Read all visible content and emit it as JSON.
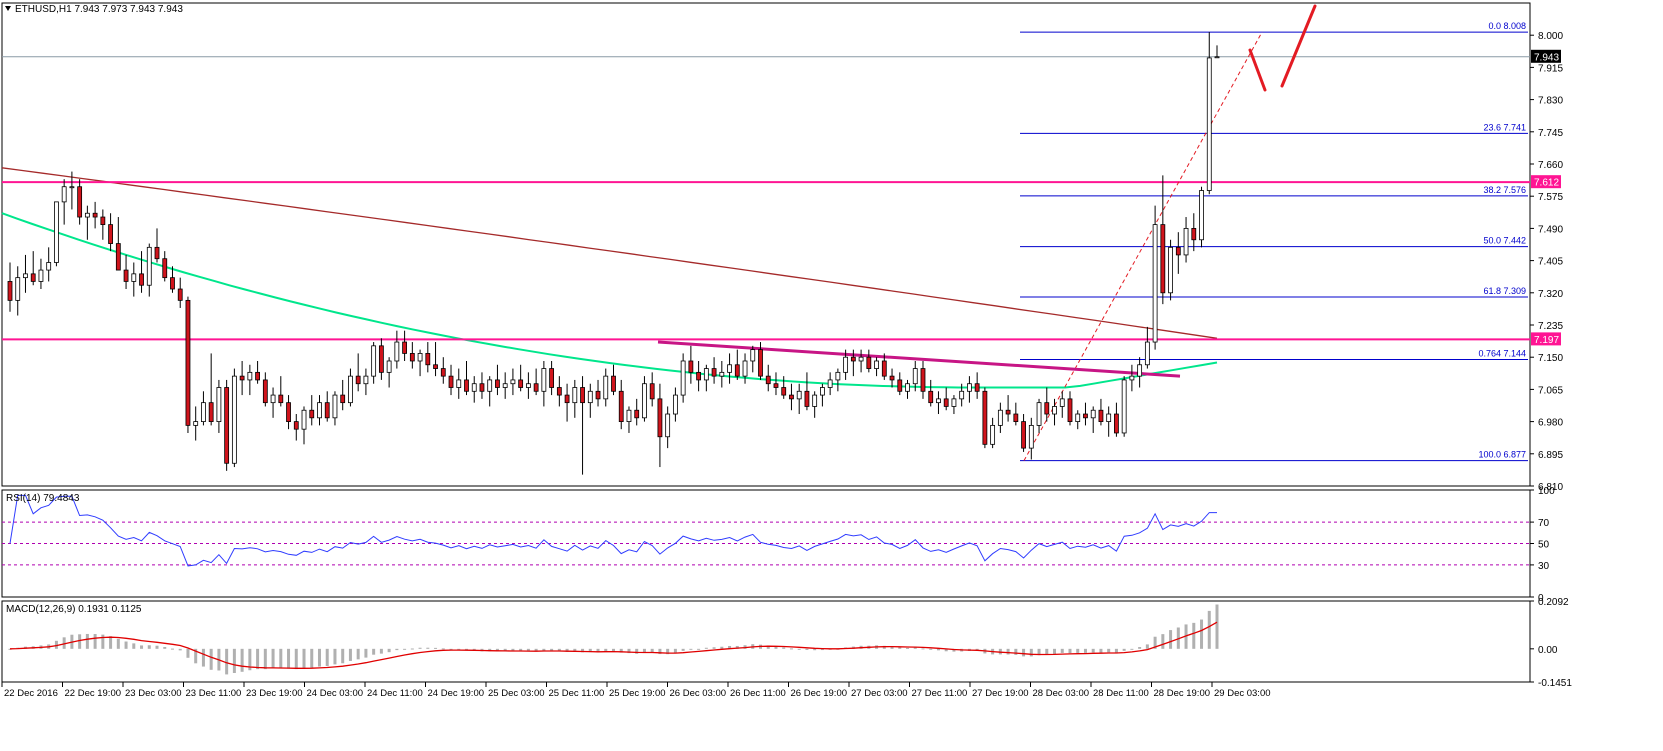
{
  "chart_data": [
    {
      "type": "candlestick",
      "symbol_label": "ETHUSD,H1",
      "ohlc_label": "7.943 7.973 7.943 7.943",
      "current_price": "7.943",
      "ylim": [
        6.81,
        8.085
      ],
      "y_ticks": [
        "8.000",
        "7.915",
        "7.830",
        "7.745",
        "7.660",
        "7.575",
        "7.490",
        "7.405",
        "7.320",
        "7.235",
        "7.150",
        "7.065",
        "6.980",
        "6.895",
        "6.810"
      ],
      "x_tick_labels": [
        "22 Dec 2016",
        "22 Dec 19:00",
        "23 Dec 03:00",
        "23 Dec 11:00",
        "23 Dec 19:00",
        "24 Dec 03:00",
        "24 Dec 11:00",
        "24 Dec 19:00",
        "25 Dec 03:00",
        "25 Dec 11:00",
        "25 Dec 19:00",
        "26 Dec 03:00",
        "26 Dec 11:00",
        "26 Dec 19:00",
        "27 Dec 03:00",
        "27 Dec 11:00",
        "27 Dec 19:00",
        "28 Dec 03:00",
        "28 Dec 11:00",
        "28 Dec 19:00",
        "29 Dec 03:00"
      ],
      "horizontal_levels": [
        {
          "value": 7.612,
          "label": "7.612",
          "color": "#ff1493"
        },
        {
          "value": 7.197,
          "label": "7.197",
          "color": "#ff1493"
        }
      ],
      "fibonacci": {
        "color": "#0000cd",
        "levels": [
          {
            "ratio": "0.0",
            "value": "8.008"
          },
          {
            "ratio": "23.6",
            "value": "7.741"
          },
          {
            "ratio": "38.2",
            "value": "7.576"
          },
          {
            "ratio": "50.0",
            "value": "7.442"
          },
          {
            "ratio": "61.8",
            "value": "7.309"
          },
          {
            "ratio": "0.764",
            "value": "7.144"
          },
          {
            "ratio": "100.0",
            "value": "6.877"
          }
        ]
      },
      "trend_line": {
        "color": "#c71585",
        "from": 7.19,
        "to": 7.1
      },
      "moving_averages": [
        {
          "color": "#a52a2a",
          "from": 7.65,
          "to": 7.2
        },
        {
          "color": "#00e68c",
          "from": 7.53,
          "to": 7.1
        }
      ],
      "candles": [
        [
          7.35,
          7.4,
          7.27,
          7.3
        ],
        [
          7.3,
          7.39,
          7.26,
          7.36
        ],
        [
          7.36,
          7.42,
          7.32,
          7.37
        ],
        [
          7.37,
          7.43,
          7.34,
          7.35
        ],
        [
          7.35,
          7.41,
          7.33,
          7.38
        ],
        [
          7.38,
          7.44,
          7.35,
          7.4
        ],
        [
          7.4,
          7.56,
          7.39,
          7.56
        ],
        [
          7.56,
          7.62,
          7.5,
          7.6
        ],
        [
          7.6,
          7.64,
          7.54,
          7.6
        ],
        [
          7.6,
          7.62,
          7.5,
          7.52
        ],
        [
          7.52,
          7.55,
          7.46,
          7.53
        ],
        [
          7.53,
          7.56,
          7.49,
          7.52
        ],
        [
          7.52,
          7.54,
          7.46,
          7.5
        ],
        [
          7.5,
          7.53,
          7.43,
          7.45
        ],
        [
          7.45,
          7.52,
          7.38,
          7.38
        ],
        [
          7.38,
          7.42,
          7.33,
          7.35
        ],
        [
          7.35,
          7.4,
          7.31,
          7.37
        ],
        [
          7.37,
          7.43,
          7.32,
          7.34
        ],
        [
          7.34,
          7.45,
          7.31,
          7.44
        ],
        [
          7.44,
          7.49,
          7.4,
          7.41
        ],
        [
          7.41,
          7.43,
          7.35,
          7.36
        ],
        [
          7.36,
          7.39,
          7.32,
          7.33
        ],
        [
          7.33,
          7.36,
          7.28,
          7.3
        ],
        [
          7.3,
          7.31,
          6.95,
          6.97
        ],
        [
          6.97,
          7.02,
          6.93,
          6.98
        ],
        [
          6.98,
          7.06,
          6.97,
          7.03
        ],
        [
          7.03,
          7.16,
          6.97,
          6.98
        ],
        [
          6.98,
          7.09,
          6.95,
          7.07
        ],
        [
          7.07,
          7.09,
          6.85,
          6.87
        ],
        [
          6.87,
          7.12,
          6.86,
          7.1
        ],
        [
          7.1,
          7.14,
          7.05,
          7.09
        ],
        [
          7.09,
          7.13,
          7.05,
          7.11
        ],
        [
          7.11,
          7.14,
          7.08,
          7.09
        ],
        [
          7.09,
          7.11,
          7.02,
          7.03
        ],
        [
          7.03,
          7.07,
          6.99,
          7.05
        ],
        [
          7.05,
          7.1,
          7.02,
          7.03
        ],
        [
          7.03,
          7.05,
          6.96,
          6.98
        ],
        [
          6.98,
          7.0,
          6.93,
          6.96
        ],
        [
          6.96,
          7.02,
          6.92,
          7.01
        ],
        [
          7.01,
          7.05,
          6.97,
          6.99
        ],
        [
          6.99,
          7.05,
          6.97,
          7.03
        ],
        [
          7.03,
          7.06,
          6.98,
          6.99
        ],
        [
          6.99,
          7.06,
          6.97,
          7.05
        ],
        [
          7.05,
          7.09,
          7.01,
          7.03
        ],
        [
          7.03,
          7.12,
          7.02,
          7.1
        ],
        [
          7.1,
          7.16,
          7.06,
          7.08
        ],
        [
          7.08,
          7.12,
          7.05,
          7.1
        ],
        [
          7.1,
          7.19,
          7.08,
          7.18
        ],
        [
          7.18,
          7.2,
          7.09,
          7.11
        ],
        [
          7.11,
          7.15,
          7.07,
          7.14
        ],
        [
          7.14,
          7.22,
          7.12,
          7.19
        ],
        [
          7.19,
          7.22,
          7.14,
          7.16
        ],
        [
          7.16,
          7.19,
          7.12,
          7.14
        ],
        [
          7.14,
          7.17,
          7.1,
          7.16
        ],
        [
          7.16,
          7.19,
          7.11,
          7.13
        ],
        [
          7.13,
          7.19,
          7.1,
          7.12
        ],
        [
          7.12,
          7.15,
          7.08,
          7.1
        ],
        [
          7.1,
          7.13,
          7.05,
          7.07
        ],
        [
          7.07,
          7.12,
          7.04,
          7.09
        ],
        [
          7.09,
          7.14,
          7.05,
          7.06
        ],
        [
          7.06,
          7.1,
          7.03,
          7.08
        ],
        [
          7.08,
          7.11,
          7.04,
          7.06
        ],
        [
          7.06,
          7.1,
          7.02,
          7.09
        ],
        [
          7.09,
          7.13,
          7.05,
          7.07
        ],
        [
          7.07,
          7.11,
          7.04,
          7.08
        ],
        [
          7.08,
          7.12,
          7.05,
          7.09
        ],
        [
          7.09,
          7.13,
          7.06,
          7.07
        ],
        [
          7.07,
          7.11,
          7.04,
          7.08
        ],
        [
          7.08,
          7.12,
          7.05,
          7.06
        ],
        [
          7.06,
          7.14,
          7.02,
          7.12
        ],
        [
          7.12,
          7.14,
          7.05,
          7.07
        ],
        [
          7.07,
          7.1,
          7.02,
          7.05
        ],
        [
          7.05,
          7.08,
          6.98,
          7.03
        ],
        [
          7.03,
          7.09,
          6.99,
          7.07
        ],
        [
          7.07,
          7.1,
          6.84,
          7.03
        ],
        [
          7.03,
          7.08,
          6.99,
          7.06
        ],
        [
          7.06,
          7.09,
          7.02,
          7.04
        ],
        [
          7.04,
          7.12,
          7.02,
          7.1
        ],
        [
          7.1,
          7.13,
          7.05,
          7.06
        ],
        [
          7.06,
          7.09,
          6.96,
          6.98
        ],
        [
          6.98,
          7.02,
          6.95,
          7.01
        ],
        [
          7.01,
          7.04,
          6.97,
          6.99
        ],
        [
          6.99,
          7.1,
          6.98,
          7.08
        ],
        [
          7.08,
          7.11,
          7.02,
          7.04
        ],
        [
          7.04,
          7.08,
          6.86,
          6.94
        ],
        [
          6.94,
          7.02,
          6.91,
          7.0
        ],
        [
          7.0,
          7.07,
          6.98,
          7.05
        ],
        [
          7.05,
          7.16,
          7.03,
          7.14
        ],
        [
          7.14,
          7.18,
          7.08,
          7.11
        ],
        [
          7.11,
          7.14,
          7.06,
          7.09
        ],
        [
          7.09,
          7.13,
          7.06,
          7.12
        ],
        [
          7.12,
          7.15,
          7.08,
          7.1
        ],
        [
          7.1,
          7.14,
          7.07,
          7.11
        ],
        [
          7.11,
          7.16,
          7.08,
          7.13
        ],
        [
          7.13,
          7.17,
          7.09,
          7.1
        ],
        [
          7.1,
          7.16,
          7.08,
          7.14
        ],
        [
          7.14,
          7.18,
          7.11,
          7.17
        ],
        [
          7.17,
          7.19,
          7.09,
          7.1
        ],
        [
          7.1,
          7.13,
          7.06,
          7.08
        ],
        [
          7.08,
          7.11,
          7.05,
          7.07
        ],
        [
          7.07,
          7.1,
          7.04,
          7.05
        ],
        [
          7.05,
          7.08,
          7.01,
          7.04
        ],
        [
          7.04,
          7.08,
          7.0,
          7.06
        ],
        [
          7.06,
          7.11,
          7.01,
          7.02
        ],
        [
          7.02,
          7.06,
          6.99,
          7.05
        ],
        [
          7.05,
          7.08,
          7.02,
          7.07
        ],
        [
          7.07,
          7.11,
          7.05,
          7.09
        ],
        [
          7.09,
          7.12,
          7.06,
          7.11
        ],
        [
          7.11,
          7.17,
          7.09,
          7.15
        ],
        [
          7.15,
          7.17,
          7.1,
          7.14
        ],
        [
          7.14,
          7.17,
          7.11,
          7.15
        ],
        [
          7.15,
          7.17,
          7.11,
          7.12
        ],
        [
          7.12,
          7.15,
          7.1,
          7.14
        ],
        [
          7.14,
          7.16,
          7.09,
          7.1
        ],
        [
          7.1,
          7.12,
          7.07,
          7.09
        ],
        [
          7.09,
          7.11,
          7.05,
          7.06
        ],
        [
          7.06,
          7.09,
          7.04,
          7.08
        ],
        [
          7.08,
          7.14,
          7.06,
          7.12
        ],
        [
          7.12,
          7.14,
          7.04,
          7.06
        ],
        [
          7.06,
          7.09,
          7.02,
          7.03
        ],
        [
          7.03,
          7.06,
          7.0,
          7.04
        ],
        [
          7.04,
          7.07,
          7.01,
          7.02
        ],
        [
          7.02,
          7.05,
          7.0,
          7.04
        ],
        [
          7.04,
          7.08,
          7.02,
          7.06
        ],
        [
          7.06,
          7.1,
          7.03,
          7.08
        ],
        [
          7.08,
          7.11,
          7.04,
          7.06
        ],
        [
          7.06,
          7.07,
          6.91,
          6.92
        ],
        [
          6.92,
          6.99,
          6.91,
          6.97
        ],
        [
          6.97,
          7.03,
          6.95,
          7.01
        ],
        [
          7.01,
          7.05,
          6.98,
          7.0
        ],
        [
          7.0,
          7.03,
          6.97,
          6.98
        ],
        [
          6.98,
          7.0,
          6.9,
          6.91
        ],
        [
          6.91,
          6.99,
          6.88,
          6.97
        ],
        [
          6.97,
          7.04,
          6.95,
          7.03
        ],
        [
          7.03,
          7.07,
          6.98,
          7.0
        ],
        [
          7.0,
          7.04,
          6.97,
          7.02
        ],
        [
          7.02,
          7.06,
          6.99,
          7.04
        ],
        [
          7.04,
          7.06,
          6.97,
          6.98
        ],
        [
          6.98,
          7.01,
          6.96,
          7.0
        ],
        [
          7.0,
          7.03,
          6.97,
          6.99
        ],
        [
          6.99,
          7.02,
          6.95,
          7.01
        ],
        [
          7.01,
          7.04,
          6.97,
          6.98
        ],
        [
          6.98,
          7.02,
          6.94,
          7.0
        ],
        [
          7.0,
          7.03,
          6.94,
          6.95
        ],
        [
          6.95,
          7.1,
          6.94,
          7.09
        ],
        [
          7.09,
          7.13,
          7.06,
          7.1
        ],
        [
          7.1,
          7.15,
          7.07,
          7.13
        ],
        [
          7.13,
          7.23,
          7.12,
          7.19
        ],
        [
          7.19,
          7.55,
          7.17,
          7.5
        ],
        [
          7.5,
          7.63,
          7.29,
          7.32
        ],
        [
          7.32,
          7.46,
          7.3,
          7.44
        ],
        [
          7.44,
          7.48,
          7.37,
          7.42
        ],
        [
          7.42,
          7.52,
          7.4,
          7.49
        ],
        [
          7.49,
          7.53,
          7.43,
          7.46
        ],
        [
          7.46,
          7.6,
          7.44,
          7.59
        ],
        [
          7.59,
          8.008,
          7.58,
          7.94
        ],
        [
          7.943,
          7.973,
          7.943,
          7.943
        ]
      ]
    },
    {
      "type": "line",
      "label": "RSI(14) 79.4843",
      "ylim": [
        0,
        100
      ],
      "y_ticks": [
        "100",
        "70",
        "50",
        "30",
        "0"
      ],
      "levels": [
        70,
        50,
        30
      ],
      "series": [
        {
          "color": "#2f3cff"
        }
      ]
    },
    {
      "type": "bar",
      "label": "MACD(12,26,9) 0.1931 0.1125",
      "ylim": [
        -0.1451,
        0.2092
      ],
      "y_ticks": [
        "0.2092",
        "0.00",
        "-0.1451"
      ],
      "histogram_color": "#b0b0b0",
      "signal_color": "#e00000"
    }
  ],
  "theme": {
    "bull_fill": "#ffffff",
    "bear_fill": "#d0141c",
    "wick": "#000000",
    "price_tag_bg": "#000000",
    "level_tag_bg": "#ff1493",
    "red_arrows": "#e31b23"
  }
}
